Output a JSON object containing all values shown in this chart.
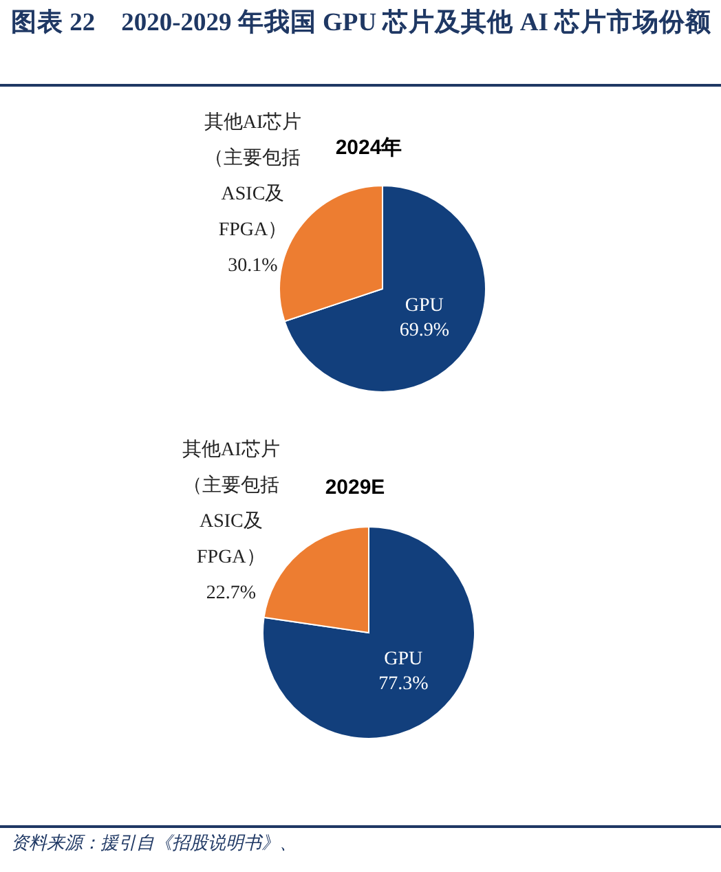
{
  "chart_data": [
    {
      "type": "pie",
      "title": "2024年",
      "categories": [
        "GPU",
        "其他AI芯片（主要包括ASIC及FPGA）"
      ],
      "values": [
        69.9,
        30.1
      ],
      "value_labels": [
        "69.9%",
        "30.1%"
      ],
      "colors": [
        "#123f7c",
        "#ed7d31"
      ],
      "annotations": [
        "图表 22　2020-2029 年我国 GPU 芯片及其他 AI 芯片市场份额"
      ]
    },
    {
      "type": "pie",
      "title": "2029E",
      "categories": [
        "GPU",
        "其他AI芯片（主要包括ASIC及FPGA）"
      ],
      "values": [
        77.3,
        22.7
      ],
      "value_labels": [
        "77.3%",
        "22.7%"
      ],
      "colors": [
        "#123f7c",
        "#ed7d31"
      ],
      "annotations": [
        "资料来源：援引自《招股说明书》、"
      ]
    }
  ]
}
